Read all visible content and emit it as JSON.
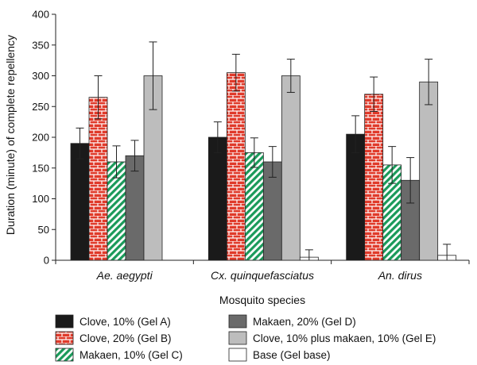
{
  "chart_data": {
    "type": "bar",
    "ylabel": "Duration (minute) of complete repellency",
    "xlabel": "Mosquito species",
    "ylim": [
      0,
      400
    ],
    "yticks": [
      "0",
      "50",
      "100",
      "150",
      "200",
      "250",
      "300",
      "350",
      "400"
    ],
    "categories": [
      "Ae. aegypti",
      "Cx. quinquefasciatus",
      "An. dirus"
    ],
    "series": [
      {
        "name": "Clove, 10% (Gel A)",
        "values": [
          190,
          200,
          205
        ],
        "errors": [
          25,
          25,
          30
        ],
        "color": "#1a1a1a",
        "pattern": "solid-dark"
      },
      {
        "name": "Clove, 20% (Gel B)",
        "values": [
          265,
          305,
          270
        ],
        "errors": [
          35,
          30,
          28
        ],
        "color": "#e04030",
        "pattern": "brick"
      },
      {
        "name": "Makaen, 10% (Gel C)",
        "values": [
          160,
          175,
          155
        ],
        "errors": [
          26,
          24,
          30
        ],
        "color": "#1a9a5a",
        "pattern": "diagonal-stripes"
      },
      {
        "name": "Makaen, 20% (Gel D)",
        "values": [
          170,
          160,
          130
        ],
        "errors": [
          25,
          25,
          37
        ],
        "color": "#6a6a6a",
        "pattern": "solid-medium"
      },
      {
        "name": "Clove, 10% plus makaen, 10% (Gel E)",
        "values": [
          300,
          300,
          290
        ],
        "errors": [
          55,
          27,
          37
        ],
        "color": "#bdbdbd",
        "pattern": "solid-light"
      },
      {
        "name": "Base (Gel base)",
        "values": [
          0,
          5,
          8
        ],
        "errors": [
          0,
          12,
          18
        ],
        "color": "#ffffff",
        "pattern": "outline"
      }
    ],
    "grid": false,
    "legend_position": "bottom"
  }
}
